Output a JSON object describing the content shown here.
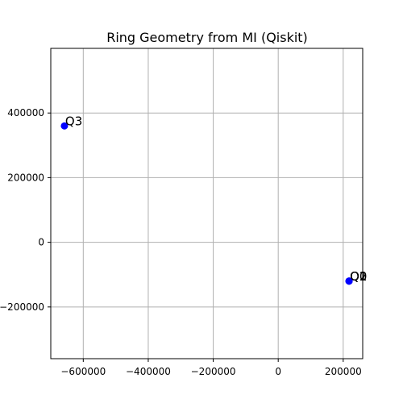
{
  "chart_data": {
    "type": "scatter",
    "title": "Ring Geometry from MI (Qiskit)",
    "xlabel": "",
    "ylabel": "",
    "xlim": [
      -700000,
      260000
    ],
    "ylim": [
      -360000,
      600000
    ],
    "x_ticks": [
      -600000,
      -400000,
      -200000,
      0,
      200000
    ],
    "x_tick_labels": [
      "−600000",
      "−400000",
      "−200000",
      "0",
      "200000"
    ],
    "y_ticks": [
      -200000,
      0,
      200000,
      400000
    ],
    "y_tick_labels": [
      "−200000",
      "0",
      "200000",
      "400000"
    ],
    "grid": true,
    "marker_color": "#0000ff",
    "points": [
      {
        "label": "Q0",
        "x": 218000,
        "y": -120000
      },
      {
        "label": "Q1",
        "x": 218000,
        "y": -120000
      },
      {
        "label": "Q2",
        "x": 218000,
        "y": -120000
      },
      {
        "label": "Q3",
        "x": -658000,
        "y": 360000
      }
    ]
  }
}
